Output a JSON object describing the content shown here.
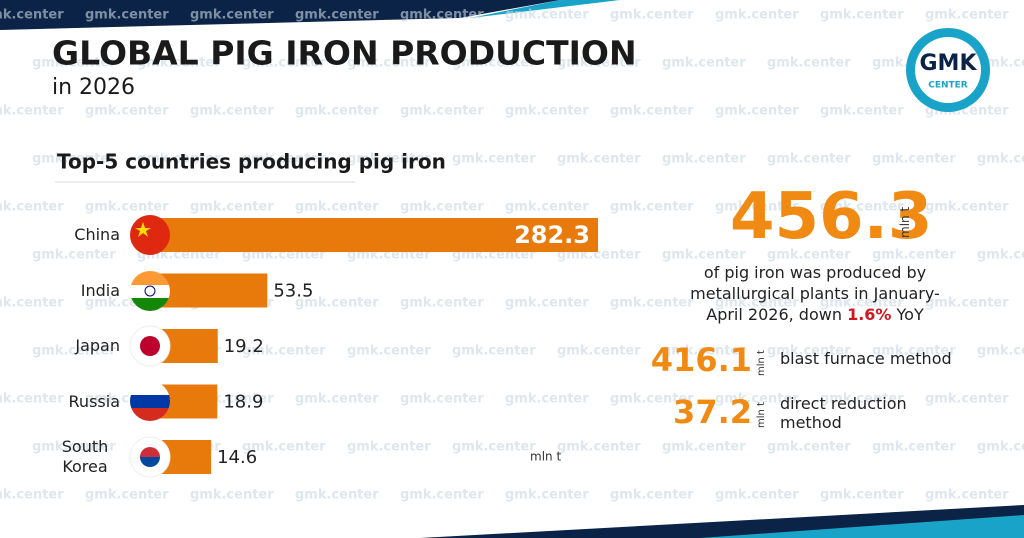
{
  "header": {
    "title": "GLOBAL PIG IRON PRODUCTION",
    "subtitle": "in 2026"
  },
  "logo": {
    "top": "GMK",
    "bottom": "CENTER"
  },
  "watermark": "gmk.center",
  "chart_data": {
    "type": "bar",
    "title": "Top-5 countries producing pig iron",
    "categories": [
      "China",
      "India",
      "Japan",
      "Russia",
      "South Korea"
    ],
    "values": [
      282.3,
      53.5,
      19.2,
      18.9,
      14.6
    ],
    "unit": "mln t",
    "color": "#e87a0c"
  },
  "summary": {
    "total": "456.3",
    "total_unit": "mln t",
    "text": "of pig iron was produced by metallurgical plants in January-April 2026, down",
    "change": "1.6%",
    "change_suffix": "YoY",
    "methods": [
      {
        "value": "416.1",
        "unit": "mln t",
        "label": "blast furnace method"
      },
      {
        "value": "37.2",
        "unit": "mln t",
        "label": "direct reduction method"
      }
    ]
  }
}
